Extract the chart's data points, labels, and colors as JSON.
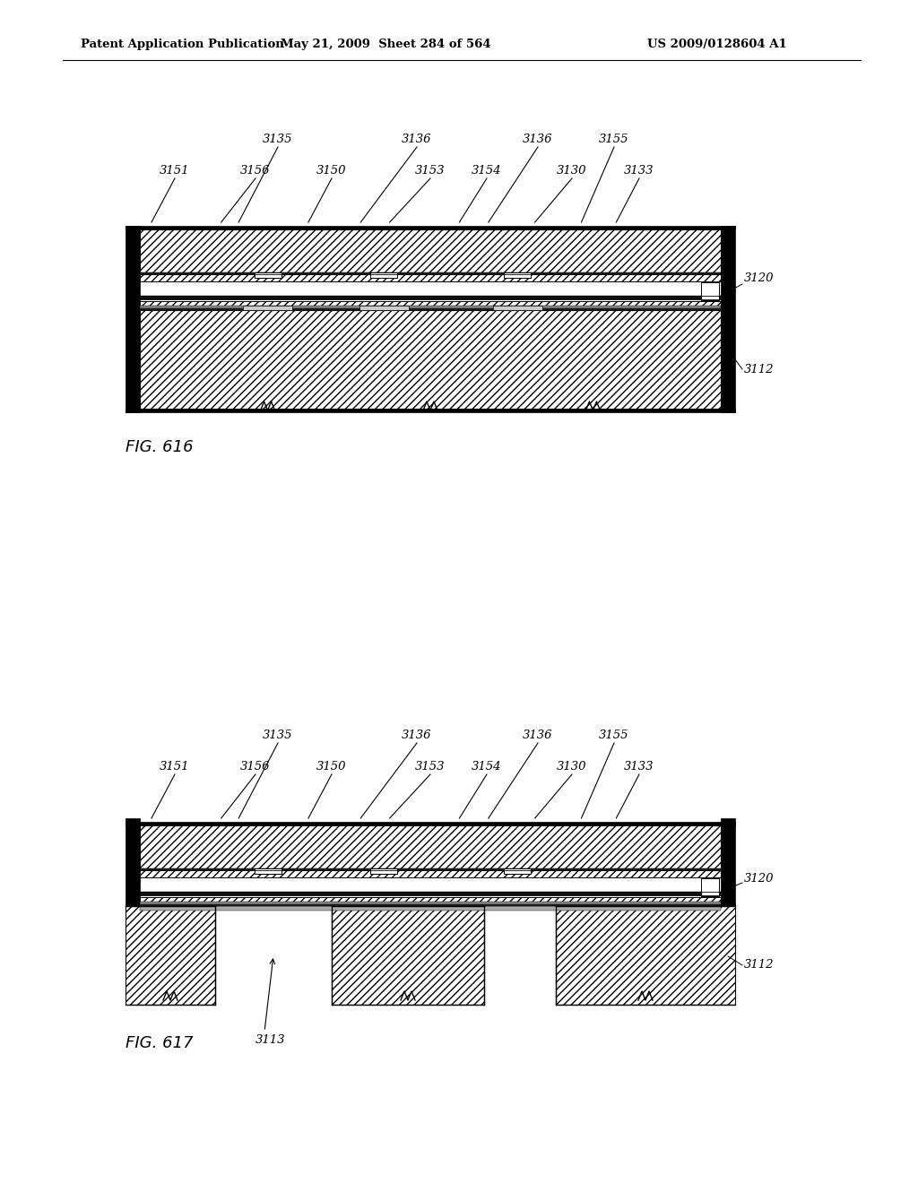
{
  "header_left": "Patent Application Publication",
  "header_mid": "May 21, 2009  Sheet 284 of 564",
  "header_right": "US 2009/0128604 A1",
  "bg_color": "#ffffff",
  "fig616_caption": "FIG. 616",
  "fig617_caption": "FIG. 617",
  "upper_labels_row1": [
    "3135",
    "3136",
    "3136",
    "3155"
  ],
  "upper_labels_row2": [
    "3151",
    "3156",
    "3150",
    "3153",
    "3154",
    "3130",
    "3133"
  ],
  "right_labels": [
    "3120",
    "3112"
  ],
  "label_3113": "3113"
}
